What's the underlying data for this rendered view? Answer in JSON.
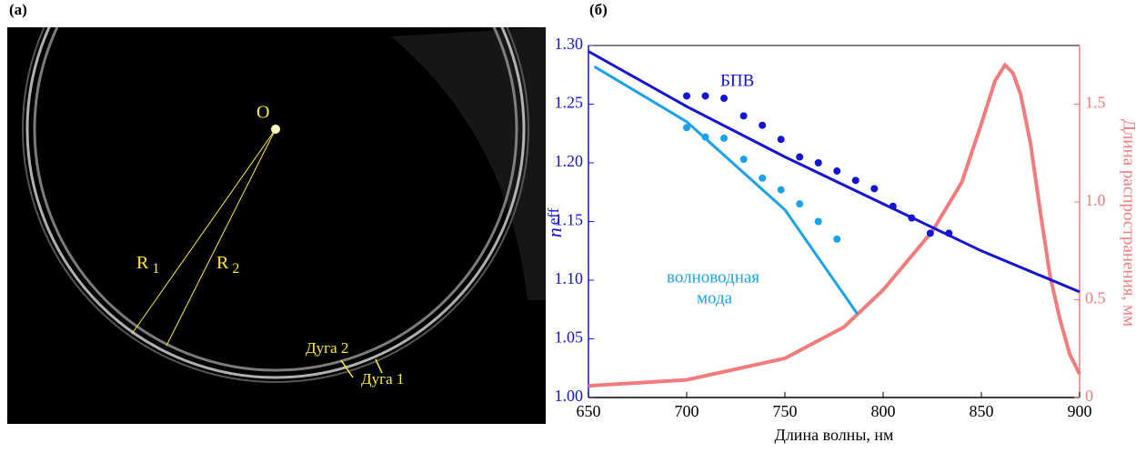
{
  "image_panel": {
    "label": "(a)",
    "center_label": "O",
    "r1": {
      "text": "R",
      "sub": "1"
    },
    "r2": {
      "text": "R",
      "sub": "2"
    },
    "arc2": "Дуга 2",
    "arc1": "Дуга 1"
  },
  "chart_data": {
    "type": "line",
    "panel_label": "(б)",
    "xlabel": "Длина волны, нм",
    "ylabel": {
      "text": "n",
      "sub": "eff"
    },
    "y2label": "Длина распространения, мм",
    "annotations": {
      "spp": "БПВ",
      "waveguide": [
        "волноводная",
        "мода"
      ]
    },
    "xlim": [
      650,
      900
    ],
    "xticks": [
      650,
      700,
      750,
      800,
      850,
      900
    ],
    "ylim": [
      1.0,
      1.3
    ],
    "yticks": [
      {
        "value": 1.0,
        "label": "1.00"
      },
      1.05,
      {
        "value": 1.1,
        "label": "1.10"
      },
      1.15,
      {
        "value": 1.2,
        "label": "1.20"
      },
      1.25,
      {
        "value": 1.3,
        "label": "1.30"
      }
    ],
    "y2lim": [
      0,
      1.8
    ],
    "y2ticks": [
      0,
      0.5,
      {
        "value": 1.0,
        "label": "1.0"
      },
      1.5
    ],
    "y_color": "#1414d2",
    "y2_color": "#f27c7c",
    "series": [
      {
        "kind": "line",
        "color": "#1414d2",
        "x": [
          650,
          700,
          750,
          800,
          850,
          900
        ],
        "values": [
          1.295,
          1.248,
          1.205,
          1.165,
          1.125,
          1.09
        ]
      },
      {
        "kind": "line",
        "color": "#1aa3e8",
        "x": [
          653,
          700,
          750,
          787
        ],
        "values": [
          1.282,
          1.235,
          1.16,
          1.071
        ]
      },
      {
        "kind": "scatter",
        "color": "#1414d2",
        "x": [
          700,
          709.5,
          719,
          729,
          738.5,
          748,
          757.5,
          767,
          776.5,
          786,
          795.5,
          805,
          814.5,
          824,
          833.5
        ],
        "values": [
          1.257,
          1.257,
          1.255,
          1.24,
          1.232,
          1.22,
          1.205,
          1.2,
          1.193,
          1.185,
          1.178,
          1.163,
          1.153,
          1.14,
          1.14
        ]
      },
      {
        "kind": "scatter",
        "color": "#1aa3e8",
        "x": [
          700,
          709.5,
          719,
          729,
          738.5,
          748,
          757.5,
          767,
          776.5
        ],
        "values": [
          1.23,
          1.222,
          1.221,
          1.203,
          1.187,
          1.177,
          1.165,
          1.15,
          1.135
        ]
      },
      {
        "kind": "line",
        "axis": "y2",
        "color": "#f27c7c",
        "x": [
          650,
          700,
          750,
          780,
          800,
          825,
          840,
          850,
          857,
          862,
          866,
          870,
          875,
          880,
          885,
          890,
          895,
          900
        ],
        "values": [
          0.06,
          0.09,
          0.2,
          0.36,
          0.55,
          0.85,
          1.1,
          1.4,
          1.62,
          1.7,
          1.66,
          1.55,
          1.3,
          0.95,
          0.62,
          0.4,
          0.22,
          0.12
        ]
      }
    ]
  }
}
